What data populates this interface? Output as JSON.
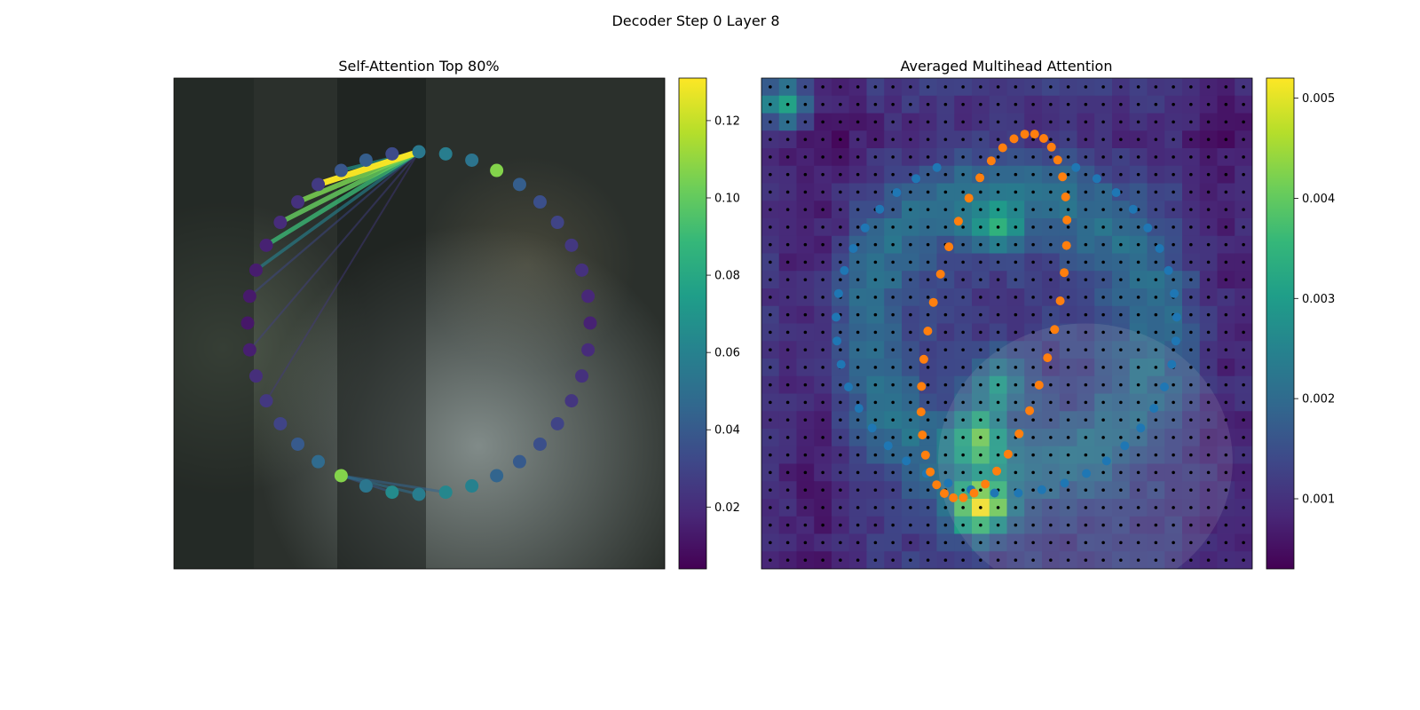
{
  "figure": {
    "title": "Decoder Step 0 Layer 8"
  },
  "colors": {
    "viridis": [
      "#440154",
      "#482878",
      "#3e4989",
      "#31688e",
      "#26828e",
      "#1f9e89",
      "#35b779",
      "#6ece58",
      "#b5de2b",
      "#fde725"
    ],
    "contour_inner": "#1f77b4",
    "contour_outer": "#ff7f0e",
    "grid_dot": "#000000"
  },
  "chart_data": [
    {
      "type": "scatter",
      "title": "Self-Attention Top 80%",
      "background": "blurred photograph (dark room, person in white shirt)",
      "n_points": 40,
      "point_values": [
        0.055,
        0.058,
        0.053,
        0.107,
        0.042,
        0.035,
        0.03,
        0.025,
        0.022,
        0.018,
        0.016,
        0.02,
        0.022,
        0.024,
        0.03,
        0.035,
        0.04,
        0.045,
        0.06,
        0.063,
        0.058,
        0.065,
        0.054,
        0.107,
        0.048,
        0.04,
        0.03,
        0.025,
        0.021,
        0.015,
        0.012,
        0.013,
        0.014,
        0.016,
        0.02,
        0.022,
        0.026,
        0.038,
        0.042,
        0.033
      ],
      "edges": [
        {
          "from": 0,
          "to": 36,
          "weight": 0.13
        },
        {
          "from": 0,
          "to": 37,
          "weight": 0.07
        },
        {
          "from": 0,
          "to": 35,
          "weight": 0.105
        },
        {
          "from": 0,
          "to": 34,
          "weight": 0.1
        },
        {
          "from": 0,
          "to": 33,
          "weight": 0.09
        },
        {
          "from": 0,
          "to": 32,
          "weight": 0.06
        },
        {
          "from": 0,
          "to": 31,
          "weight": 0.032
        },
        {
          "from": 0,
          "to": 29,
          "weight": 0.028
        },
        {
          "from": 0,
          "to": 27,
          "weight": 0.025
        },
        {
          "from": 20,
          "to": 23,
          "weight": 0.05
        },
        {
          "from": 19,
          "to": 23,
          "weight": 0.045
        },
        {
          "from": 21,
          "to": 23,
          "weight": 0.04
        }
      ],
      "colorbar": {
        "min": 0.004,
        "max": 0.131,
        "ticks": [
          "0.02",
          "0.04",
          "0.06",
          "0.08",
          "0.10",
          "0.12"
        ],
        "tick_values": [
          0.02,
          0.04,
          0.06,
          0.08,
          0.1,
          0.12
        ]
      }
    },
    {
      "type": "heatmap",
      "title": "Averaged Multihead Attention",
      "grid_size": 28,
      "colorbar": {
        "min": 0.0003,
        "max": 0.0052,
        "ticks": [
          "0.001",
          "0.002",
          "0.003",
          "0.004",
          "0.005"
        ],
        "tick_values": [
          0.001,
          0.002,
          0.003,
          0.004,
          0.005
        ]
      },
      "hotspots": [
        {
          "row": 24,
          "col": 12,
          "value": 0.005
        },
        {
          "row": 1,
          "col": 1,
          "value": 0.0035
        },
        {
          "row": 20,
          "col": 12,
          "value": 0.0036
        },
        {
          "row": 17,
          "col": 13,
          "value": 0.003
        },
        {
          "row": 8,
          "col": 13,
          "value": 0.003
        }
      ],
      "baseline_value": 0.0012,
      "inner_contour_points": 40,
      "outer_contour_points": 40
    }
  ]
}
